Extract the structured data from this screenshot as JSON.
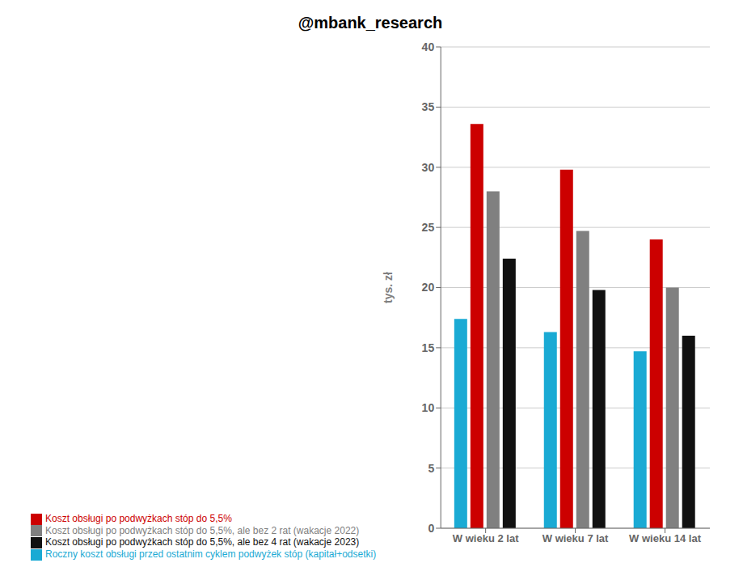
{
  "chart_data": {
    "type": "bar",
    "title": "@mbank_research",
    "ylabel": "tys. zł",
    "categories": [
      "W wieku 2 lat",
      "W wieku 7 lat",
      "W wieku 14 lat"
    ],
    "series": [
      {
        "name": "Roczny koszt obsługi przed ostatnim cyklem podwyżek stóp (kapitał+odsetki)",
        "color": "#1AAAD4",
        "values": [
          17.4,
          16.3,
          14.7
        ]
      },
      {
        "name": "Koszt obsługi po podwyżkach stóp do 5,5%",
        "color": "#CC0000",
        "values": [
          33.6,
          29.8,
          24.0
        ]
      },
      {
        "name": "Koszt obsługi po podwyżkach stóp do 5,5%, ale bez 2 rat (wakacje 2022)",
        "color": "#808080",
        "values": [
          28.0,
          24.7,
          20.0
        ]
      },
      {
        "name": "Koszt obsługi po podwyżkach stóp do 5,5%, ale bez 4 rat (wakacje 2023)",
        "color": "#111111",
        "values": [
          22.4,
          19.8,
          16.0
        ]
      }
    ],
    "ylim": [
      0,
      40
    ],
    "yticks": [
      0,
      5,
      10,
      15,
      20,
      25,
      30,
      35,
      40
    ],
    "grid": true,
    "legend": "bottom"
  }
}
